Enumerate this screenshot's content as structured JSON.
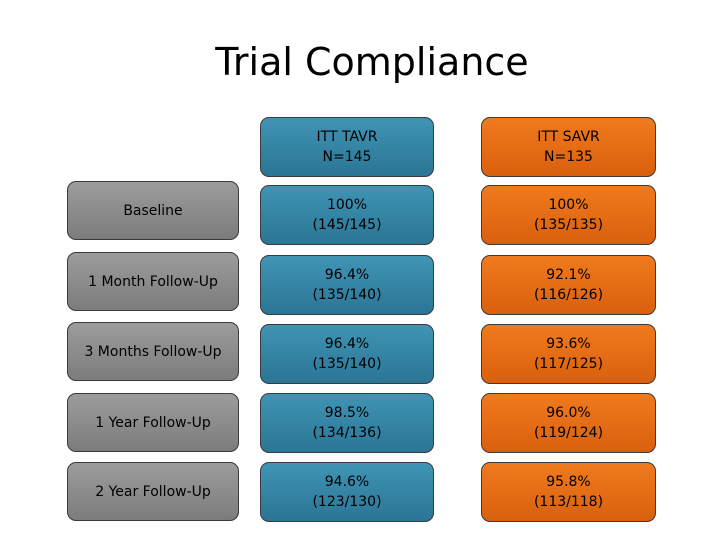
{
  "title": "Trial Compliance",
  "columns": [
    {
      "name": "ITT TAVR",
      "n": "N=145"
    },
    {
      "name": "ITT SAVR",
      "n": "N=135"
    }
  ],
  "rows": [
    {
      "label": "Baseline",
      "tavr_pct": "100%",
      "tavr_frac": "(145/145)",
      "savr_pct": "100%",
      "savr_frac": "(135/135)"
    },
    {
      "label": "1 Month Follow-Up",
      "tavr_pct": "96.4%",
      "tavr_frac": "(135/140)",
      "savr_pct": "92.1%",
      "savr_frac": "(116/126)"
    },
    {
      "label": "3 Months Follow-Up",
      "tavr_pct": "96.4%",
      "tavr_frac": "(135/140)",
      "savr_pct": "93.6%",
      "savr_frac": "(117/125)"
    },
    {
      "label": "1 Year Follow-Up",
      "tavr_pct": "98.5%",
      "tavr_frac": "(134/136)",
      "savr_pct": "96.0%",
      "savr_frac": "(119/124)"
    },
    {
      "label": "2 Year Follow-Up",
      "tavr_pct": "94.6%",
      "tavr_frac": "(123/130)",
      "savr_pct": "95.8%",
      "savr_frac": "(113/118)"
    }
  ],
  "colors": {
    "tavr": "#3387a8",
    "savr": "#e86a13",
    "label": "#8a8a8a"
  }
}
